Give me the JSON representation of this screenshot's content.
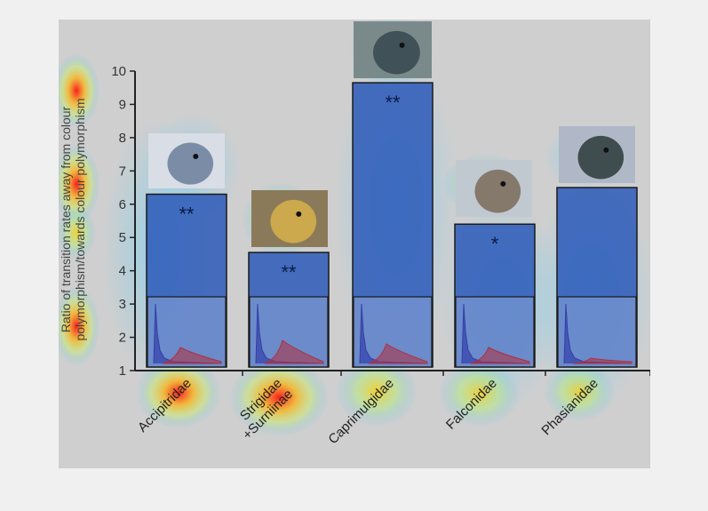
{
  "chart_data": {
    "type": "bar",
    "categories": [
      "Accipitridae",
      "Strigidae\n+Surniinae",
      "Caprimulgidae",
      "Falconidae",
      "Phasianidae"
    ],
    "values": [
      6.3,
      4.55,
      9.65,
      5.4,
      6.5
    ],
    "significance": [
      "**",
      "**",
      "**",
      "*",
      ""
    ],
    "ylabel_lines": [
      "Ratio of transition rates away from colour",
      "polymorphism/towards colour polymorphism"
    ],
    "ylim": [
      1,
      10
    ],
    "yticks": [
      1,
      2,
      3,
      4,
      5,
      6,
      7,
      8,
      9,
      10
    ],
    "bar_color": "#2b59b8",
    "inset_axis_color": "#333333",
    "inset_series_colors": [
      "#3340a8",
      "#b0303c"
    ]
  }
}
